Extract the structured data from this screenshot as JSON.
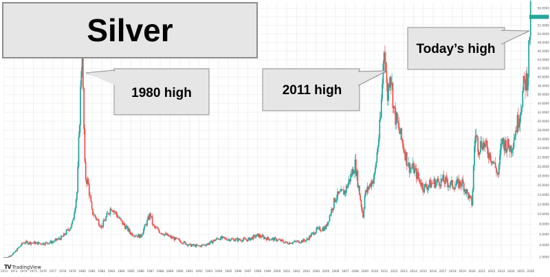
{
  "title": "Silver",
  "brand": {
    "name": "TradingView",
    "logo_icon": "tradingview-logo-icon"
  },
  "annotations": [
    {
      "label": "1980 high"
    },
    {
      "label": "2011 high"
    },
    {
      "label": "Today’s high"
    }
  ],
  "colors": {
    "up": "#26a69a",
    "down": "#ef5350",
    "grid": "#eef0f3",
    "callout_fill": "#e6e6e6",
    "callout_border": "#8c8c8c"
  },
  "chart_data": {
    "type": "candlestick",
    "title": "Silver",
    "x_ticks": [
      "1972",
      "1973",
      "1974",
      "1975",
      "1976",
      "1977",
      "1978",
      "1979",
      "1980",
      "1981",
      "1982",
      "1983",
      "1984",
      "1985",
      "1986",
      "1987",
      "1988",
      "1989",
      "1990",
      "1991",
      "1992",
      "1993",
      "1994",
      "1995",
      "1996",
      "1997",
      "1998",
      "1999",
      "2000",
      "2001",
      "2002",
      "2003",
      "2004",
      "2005",
      "2006",
      "2007",
      "2008",
      "2009",
      "2010",
      "2011",
      "2012",
      "2013",
      "2014",
      "2015",
      "2016",
      "2017",
      "2018",
      "2019",
      "2020",
      "2021",
      "2022",
      "2023",
      "2024",
      "2025",
      "2026"
    ],
    "y_ticks": [
      2,
      4,
      6,
      8,
      10,
      12,
      14,
      16,
      18,
      20,
      22,
      24,
      26,
      28,
      30,
      32,
      34,
      36,
      38,
      40,
      42,
      44,
      46,
      48,
      50,
      52,
      54,
      56
    ],
    "ylim": [
      2,
      57
    ],
    "grid": true,
    "series": [
      {
        "x": [
          1972,
          1973,
          1974,
          1975,
          1976,
          1977,
          1978,
          1979,
          1979.5,
          1980,
          1980.1,
          1980.3,
          1980.6,
          1981,
          1982,
          1983,
          1984,
          1985,
          1986,
          1987,
          1987.3,
          1988,
          1989,
          1990,
          1991,
          1992,
          1993,
          1994,
          1995,
          1996,
          1997,
          1998,
          1999,
          2000,
          2001,
          2002,
          2003,
          2004,
          2005,
          2006,
          2007,
          2008,
          2008.8,
          2009,
          2010,
          2010.6,
          2011,
          2011.3,
          2011.6,
          2012,
          2013,
          2013.5,
          2014,
          2015,
          2016,
          2017,
          2018,
          2019,
          2020,
          2020.3,
          2020.7,
          2021,
          2022,
          2022.7,
          2023,
          2024,
          2024.8,
          2025,
          2025.3,
          2025.7,
          2025.9,
          2026
        ],
        "values": [
          1.6,
          2.6,
          4.5,
          4.4,
          4.3,
          4.6,
          5.5,
          8.0,
          15.0,
          48.0,
          36.0,
          18.0,
          16.5,
          10.5,
          7.5,
          11.5,
          8.5,
          6.2,
          5.6,
          10.0,
          7.5,
          6.5,
          5.5,
          4.8,
          4.0,
          3.8,
          4.3,
          5.3,
          5.1,
          5.0,
          5.0,
          5.8,
          5.2,
          5.0,
          4.4,
          4.6,
          4.9,
          6.8,
          7.3,
          13.5,
          14.8,
          20.5,
          9.5,
          14.0,
          18.0,
          30.0,
          48.5,
          35.0,
          42.0,
          32.0,
          24.0,
          20.0,
          19.5,
          15.5,
          16.5,
          17.0,
          16.0,
          16.5,
          12.0,
          27.5,
          24.0,
          25.5,
          22.0,
          18.0,
          25.5,
          24.0,
          31.0,
          33.5,
          38.0,
          40.0,
          50.5,
          54.0
        ]
      }
    ]
  }
}
